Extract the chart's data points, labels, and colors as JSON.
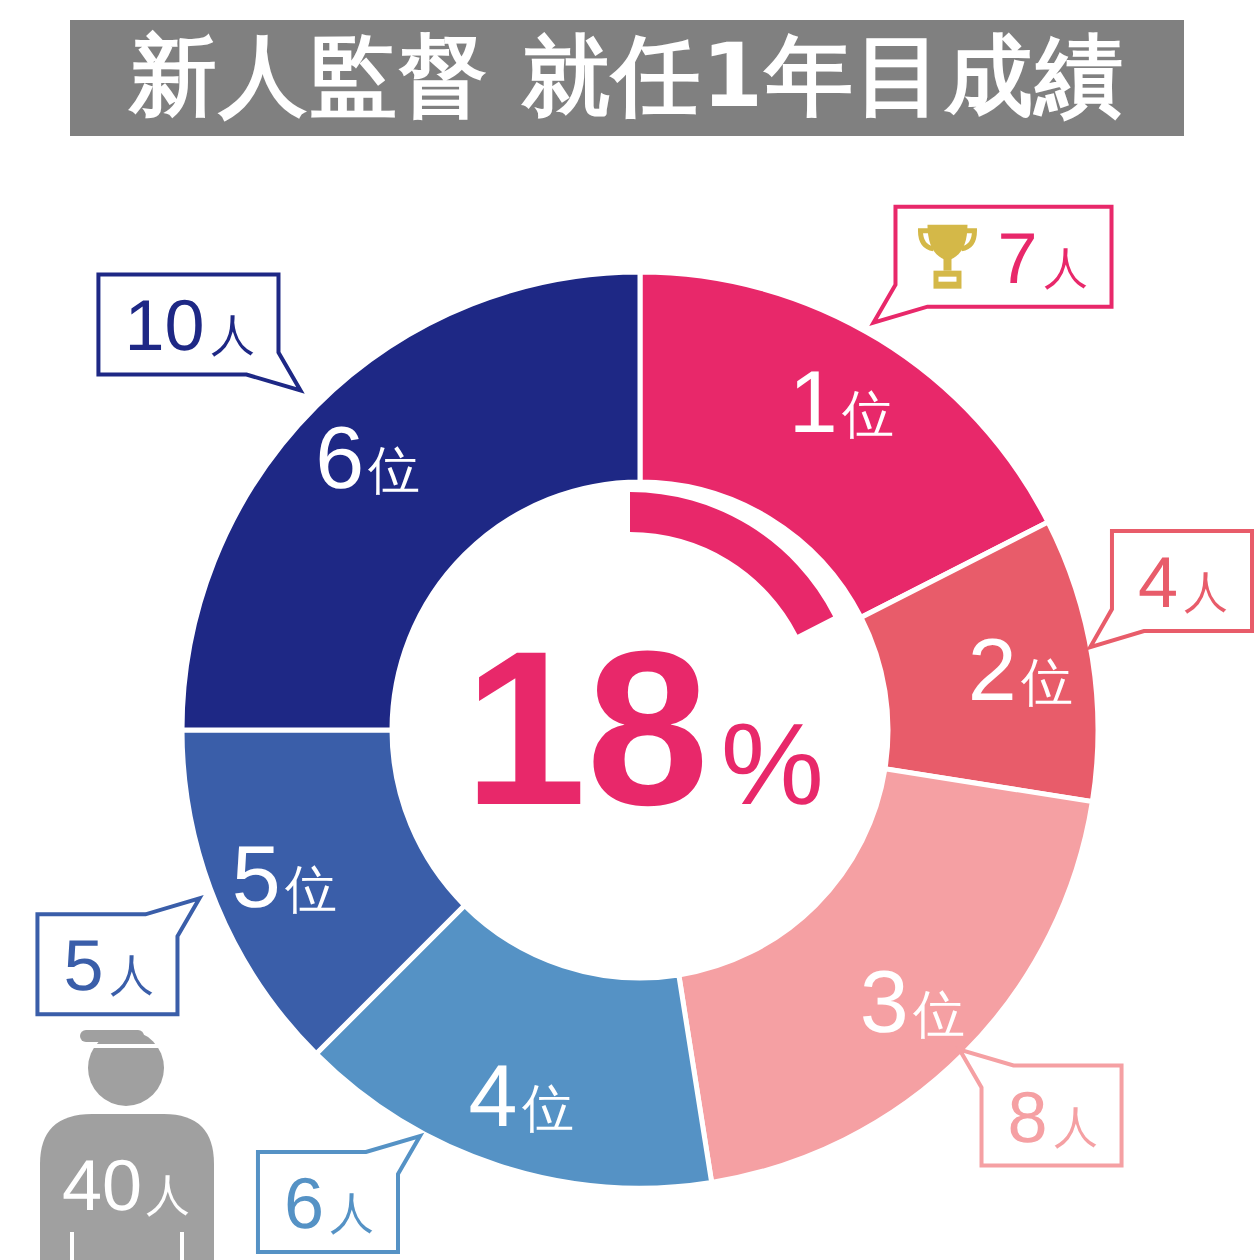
{
  "chart_data": {
    "type": "donut",
    "title": "新人監督 就任1年目成績",
    "categories": [
      "1位",
      "2位",
      "3位",
      "4位",
      "5位",
      "6位"
    ],
    "values": [
      7,
      4,
      8,
      6,
      5,
      10
    ],
    "colors": [
      "#e8286a",
      "#e85c6a",
      "#f5a0a3",
      "#5592c5",
      "#3a5ea9",
      "#1e2885"
    ],
    "value_labels": [
      "7人",
      "4人",
      "8人",
      "6人",
      "5人",
      "10人"
    ],
    "annotations": [
      "18%",
      "40人"
    ]
  }
}
